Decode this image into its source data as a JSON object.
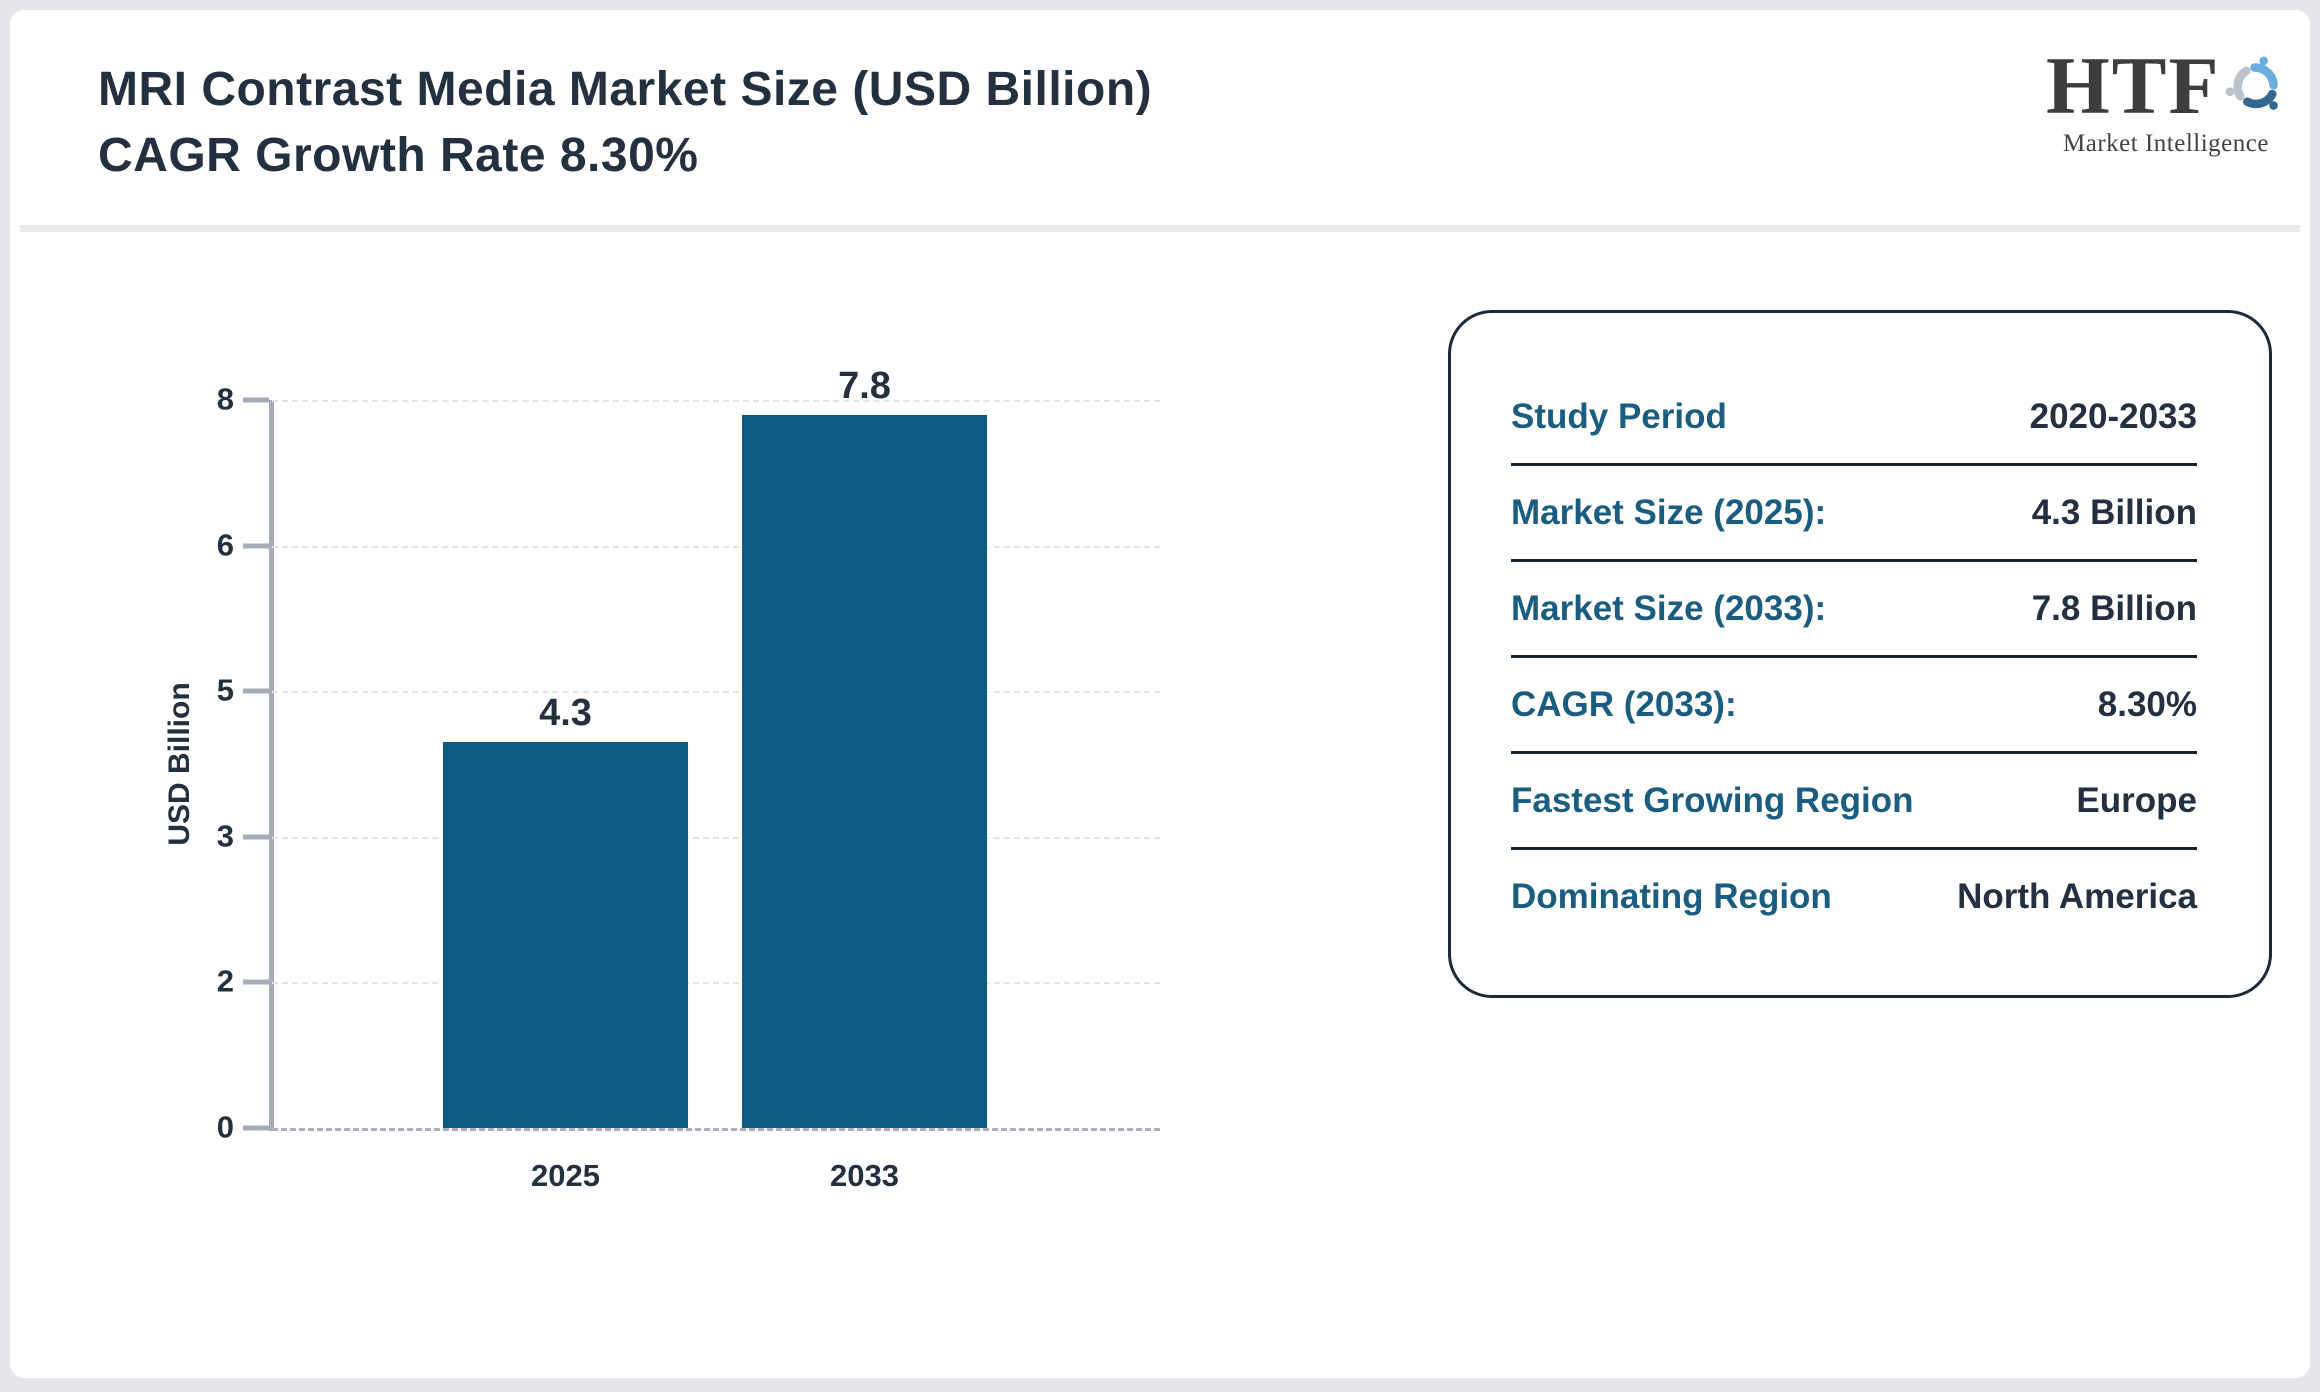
{
  "header": {
    "title_line1": "MRI Contrast Media Market Size (USD Billion)",
    "title_line2": "CAGR Growth Rate 8.30%"
  },
  "logo": {
    "text": "HTF",
    "subtext": "Market Intelligence",
    "mark_colors": [
      "#6aaede",
      "#33688f",
      "#b9c2cd"
    ]
  },
  "chart_data": {
    "type": "bar",
    "title": "MRI Contrast Media Market Size (USD Billion)",
    "subtitle": "CAGR Growth Rate 8.30%",
    "categories": [
      "2025",
      "2033"
    ],
    "values": [
      4.3,
      7.8
    ],
    "bar_value_labels": [
      "4.3",
      "7.8"
    ],
    "ylabel": "USD Billion",
    "y_tick_labels_top_to_bottom": [
      "8",
      "6",
      "5",
      "3",
      "2",
      "0"
    ],
    "ylim": [
      0,
      8
    ],
    "legend": "none",
    "grid": "horizontal-dashed",
    "bar_color": "#0d5a80"
  },
  "panel": {
    "rows": [
      {
        "label": "Study Period",
        "value": "2020-2033"
      },
      {
        "label": "Market Size (2025):",
        "value": "4.3 Billion"
      },
      {
        "label": "Market Size (2033):",
        "value": "7.8 Billion"
      },
      {
        "label": "CAGR (2033):",
        "value": "8.30%"
      },
      {
        "label": "Fastest Growing Region",
        "value": "Europe"
      },
      {
        "label": "Dominating Region",
        "value": "North America"
      }
    ]
  },
  "colors": {
    "bar": "#0d5a80",
    "label_teal": "#1a5d80",
    "text_navy": "#22303f",
    "axis_gray": "#a6adb8",
    "gridline": "#e2e4e7",
    "page_bg": "#e4e6ea",
    "panel_border": "#1b2a39"
  }
}
